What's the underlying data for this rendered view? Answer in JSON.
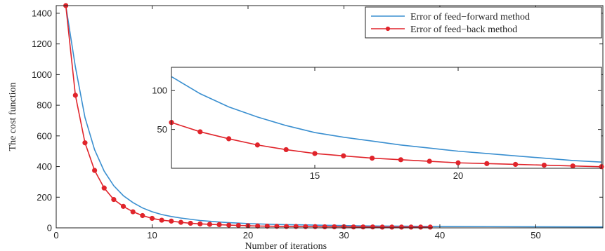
{
  "chart_data": [
    {
      "type": "line",
      "title": "",
      "xlabel": "Number of iterations",
      "ylabel": "The cost function",
      "xlim": [
        0,
        57
      ],
      "ylim": [
        0,
        1450
      ],
      "xticks": [
        0,
        10,
        20,
        30,
        40,
        50
      ],
      "yticks": [
        0,
        200,
        400,
        600,
        800,
        1000,
        1200,
        1400
      ],
      "grid": false,
      "legend": "top-right",
      "series": [
        {
          "name": "Error of feed−forward method",
          "color": "#3a8fd0",
          "marker": "none",
          "x": [
            1,
            2,
            3,
            4,
            5,
            6,
            7,
            8,
            9,
            10,
            11,
            12,
            13,
            14,
            15,
            16,
            17,
            18,
            19,
            20,
            22,
            24,
            26,
            28,
            30,
            32,
            34,
            36,
            38,
            40,
            45,
            50,
            57
          ],
          "y": [
            1450,
            1050,
            720,
            510,
            370,
            275,
            210,
            165,
            130,
            105,
            87,
            74,
            64,
            56,
            48,
            43,
            38,
            34,
            31,
            28,
            24,
            21,
            19,
            17,
            15,
            13,
            12,
            11,
            10,
            9,
            8,
            7,
            6
          ]
        },
        {
          "name": "Error of feed−back method",
          "color": "#e0242b",
          "marker": "circle",
          "x": [
            1,
            2,
            3,
            4,
            5,
            6,
            7,
            8,
            9,
            10,
            11,
            12,
            13,
            14,
            15,
            16,
            17,
            18,
            19,
            20,
            21,
            22,
            23,
            24,
            25,
            26,
            27,
            28,
            29,
            30,
            31,
            32,
            33,
            34,
            35,
            36,
            37,
            38,
            39
          ],
          "y": [
            1450,
            865,
            555,
            375,
            260,
            185,
            140,
            105,
            80,
            62,
            50,
            44,
            36,
            30,
            26,
            23,
            21,
            18,
            16,
            14,
            12,
            11,
            10,
            9,
            9,
            8,
            8,
            7,
            7,
            7,
            6,
            6,
            6,
            5,
            5,
            5,
            5,
            5,
            5
          ]
        }
      ]
    },
    {
      "type": "line",
      "title": "",
      "xlabel": "",
      "ylabel": "",
      "xlim": [
        10,
        25
      ],
      "ylim": [
        0,
        130
      ],
      "xticks": [
        15,
        20
      ],
      "yticks": [
        50,
        100
      ],
      "grid": false,
      "series": [
        {
          "name": "Error of feed−forward method",
          "color": "#3a8fd0",
          "marker": "none",
          "x": [
            10,
            11,
            12,
            13,
            14,
            15,
            16,
            17,
            18,
            19,
            20,
            21,
            22,
            23,
            24,
            25
          ],
          "y": [
            118,
            96,
            79,
            66,
            55,
            46,
            40,
            35,
            30,
            26,
            22,
            19,
            16,
            13,
            10,
            8
          ]
        },
        {
          "name": "Error of feed−back method",
          "color": "#e0242b",
          "marker": "circle",
          "x": [
            10,
            11,
            12,
            13,
            14,
            15,
            16,
            17,
            18,
            19,
            20,
            21,
            22,
            23,
            24,
            25
          ],
          "y": [
            59,
            47,
            38,
            30,
            24,
            19,
            16,
            13,
            11,
            9,
            7,
            6,
            5,
            4,
            3,
            2
          ]
        }
      ]
    }
  ]
}
